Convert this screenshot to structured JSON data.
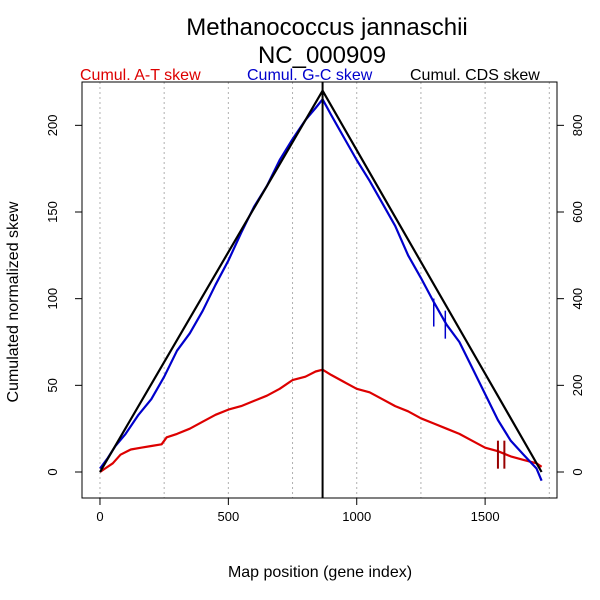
{
  "chart_data": {
    "type": "line",
    "title": "Methanococcus jannaschii",
    "subtitle": "NC_000909",
    "xlabel": "Map position (gene index)",
    "ylabel": "Cumulated normalized skew",
    "xlim": [
      -70,
      1780
    ],
    "ylim": [
      -15,
      225
    ],
    "y2lim": [
      -60,
      900
    ],
    "x_ticks": [
      0,
      500,
      1000,
      1500
    ],
    "y_ticks": [
      0,
      50,
      100,
      150,
      200
    ],
    "y2_ticks": [
      0,
      200,
      400,
      600,
      800
    ],
    "grid": "vertical dotted lines every 250",
    "grid_x": [
      0,
      250,
      500,
      750,
      1000,
      1250,
      1500,
      1750
    ],
    "legend": [
      "Cumul. A-T skew",
      "Cumul. G-C skew",
      "Cumul. CDS skew"
    ],
    "legend_position": "top",
    "vline_x": 867,
    "colors": {
      "at": "#dd0000",
      "gc": "#0000cc",
      "cds": "#000000"
    },
    "series": [
      {
        "name": "Cumul. A-T skew",
        "color": "#dd0000",
        "axis": "left",
        "x": [
          0,
          20,
          50,
          80,
          120,
          160,
          200,
          240,
          260,
          300,
          350,
          400,
          450,
          500,
          550,
          600,
          650,
          700,
          750,
          800,
          840,
          867,
          900,
          950,
          1000,
          1050,
          1100,
          1150,
          1200,
          1250,
          1300,
          1350,
          1400,
          1450,
          1500,
          1550,
          1600,
          1650,
          1700,
          1720
        ],
        "y": [
          0,
          2,
          5,
          10,
          13,
          14,
          15,
          16,
          20,
          22,
          25,
          29,
          33,
          36,
          38,
          41,
          44,
          48,
          53,
          55,
          58,
          59,
          56,
          52,
          48,
          46,
          42,
          38,
          35,
          31,
          28,
          25,
          22,
          18,
          14,
          12,
          9,
          7,
          5,
          3
        ]
      },
      {
        "name": "Cumul. G-C skew",
        "color": "#0000cc",
        "axis": "left",
        "x": [
          0,
          30,
          60,
          100,
          150,
          200,
          250,
          300,
          350,
          400,
          450,
          500,
          550,
          600,
          650,
          700,
          750,
          800,
          840,
          867,
          900,
          950,
          1000,
          1050,
          1100,
          1150,
          1200,
          1250,
          1300,
          1350,
          1400,
          1450,
          1500,
          1550,
          1600,
          1650,
          1700,
          1720
        ],
        "y": [
          2,
          8,
          15,
          22,
          33,
          42,
          55,
          70,
          80,
          93,
          108,
          122,
          138,
          153,
          165,
          180,
          192,
          203,
          210,
          215,
          206,
          193,
          180,
          168,
          155,
          142,
          125,
          112,
          98,
          85,
          75,
          60,
          45,
          30,
          18,
          10,
          2,
          -5
        ]
      },
      {
        "name": "Cumul. CDS skew",
        "color": "#000000",
        "axis": "right",
        "x": [
          0,
          867,
          1720
        ],
        "y": [
          0,
          880,
          0
        ]
      }
    ],
    "ticks_on_gc": [
      {
        "x": 1300,
        "y": 92,
        "len": 14
      },
      {
        "x": 1345,
        "y": 85,
        "len": 14
      }
    ],
    "ticks_on_at": [
      {
        "x": 1550,
        "y": 10,
        "len": 14
      },
      {
        "x": 1575,
        "y": 10,
        "len": 14
      }
    ]
  }
}
